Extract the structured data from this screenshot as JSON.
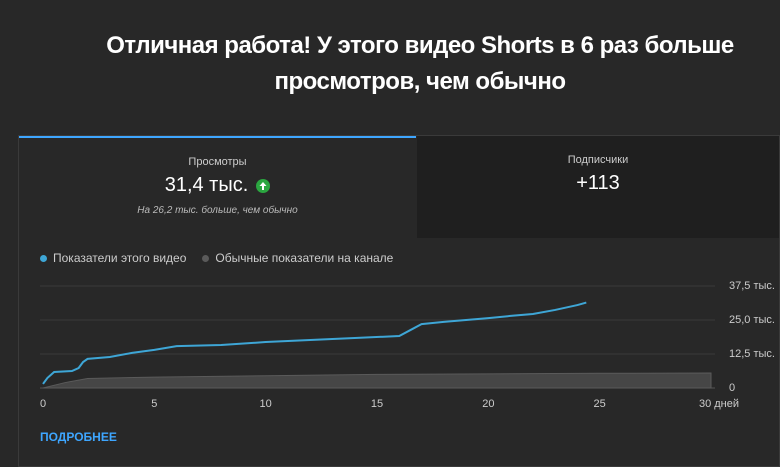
{
  "title_lines": [
    "Отличная работа! У этого видео Shorts в 6 раз больше",
    "просмотров, чем обычно"
  ],
  "metrics": [
    {
      "label": "Просмотры",
      "value": "31,4 тыс.",
      "note": "На 26,2 тыс. больше, чем обычно"
    },
    {
      "label": "Подписчики",
      "value": "+113"
    }
  ],
  "chart_data": {
    "type": "line",
    "series": [
      {
        "name": "Показатели этого видео",
        "color": "#3ea6d6",
        "x": [
          0,
          0.2,
          0.5,
          1.3,
          1.6,
          1.8,
          2,
          3,
          4,
          5,
          6,
          8,
          10,
          12,
          14,
          16,
          16.5,
          17,
          18,
          19,
          20,
          21,
          22,
          23,
          24,
          24.4
        ],
        "values": [
          1500,
          3700,
          5900,
          6250,
          7350,
          9550,
          10700,
          11400,
          12900,
          14000,
          15400,
          15800,
          16900,
          17650,
          18400,
          19100,
          21300,
          23500,
          24300,
          25000,
          25700,
          26500,
          27200,
          28700,
          30500,
          31400
        ]
      },
      {
        "name": "Обычные показатели на канале",
        "color": "#5a5a5a",
        "x": [
          0,
          1,
          2,
          5,
          10,
          15,
          20,
          25,
          30
        ],
        "values": [
          0,
          2000,
          3500,
          4000,
          4500,
          5000,
          5200,
          5400,
          5500
        ]
      }
    ],
    "xlim": [
      0,
      30
    ],
    "xticks": [
      0,
      5,
      10,
      15,
      20,
      25,
      {
        "value": 30,
        "label": "30 дней"
      }
    ],
    "ylim": [
      0,
      37500
    ],
    "yticks": [
      0,
      {
        "value": 12500,
        "label": "12,5 тыс."
      },
      {
        "value": 25000,
        "label": "25,0 тыс."
      },
      {
        "value": 37500,
        "label": "37,5 тыс."
      }
    ],
    "grid": true
  },
  "link": "ПОДРОБНЕЕ"
}
